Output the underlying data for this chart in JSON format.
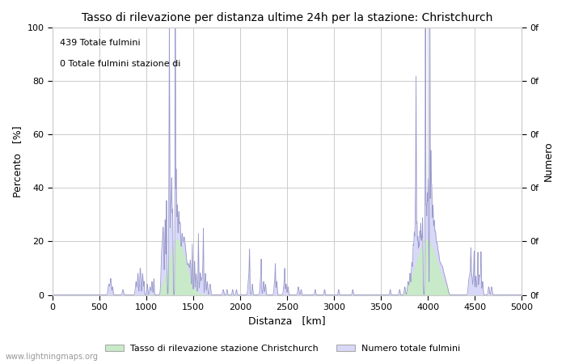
{
  "title": "Tasso di rilevazione per distanza ultime 24h per la stazione: Christchurch",
  "xlabel": "Distanza   [km]",
  "ylabel_left": "Percento   [%]",
  "ylabel_right": "Numero",
  "annotation_line1": "439 Totale fulmini",
  "annotation_line2": "0 Totale fulmini stazione di",
  "xlim": [
    0,
    5000
  ],
  "ylim": [
    0,
    100
  ],
  "xticks": [
    0,
    500,
    1000,
    1500,
    2000,
    2500,
    3000,
    3500,
    4000,
    4500,
    5000
  ],
  "yticks_left": [
    0,
    20,
    40,
    60,
    80,
    100
  ],
  "yticks_right_labels": [
    "0f",
    "0f",
    "0f",
    "0f",
    "0f",
    "0f"
  ],
  "right_axis_ticks": [
    0,
    20,
    40,
    60,
    80,
    100
  ],
  "legend_entries": [
    "Tasso di rilevazione stazione Christchurch",
    "Numero totale fulmini"
  ],
  "fill_green_color": "#c8eac8",
  "fill_blue_color": "#d8d8f8",
  "line_color": "#9999cc",
  "background_color": "#ffffff",
  "grid_color": "#cccccc",
  "watermark": "www.lightningmaps.org"
}
